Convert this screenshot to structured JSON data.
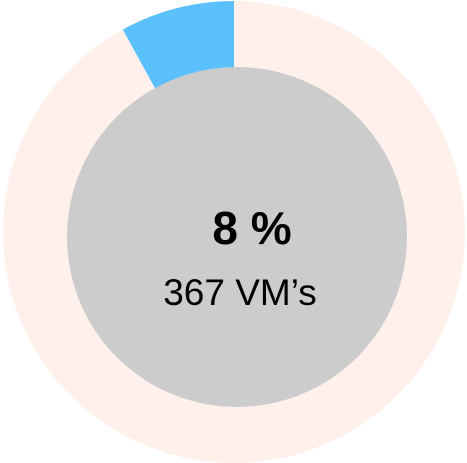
{
  "chart_data": {
    "type": "donut",
    "categories": [
      null,
      null
    ],
    "values": [
      8,
      92
    ],
    "value_labels": [
      "8 %"
    ],
    "colors": [
      "#5bc0fe",
      "#fff0eb"
    ],
    "center_color": "#cccccc",
    "subtitle": "367 VM’s"
  }
}
